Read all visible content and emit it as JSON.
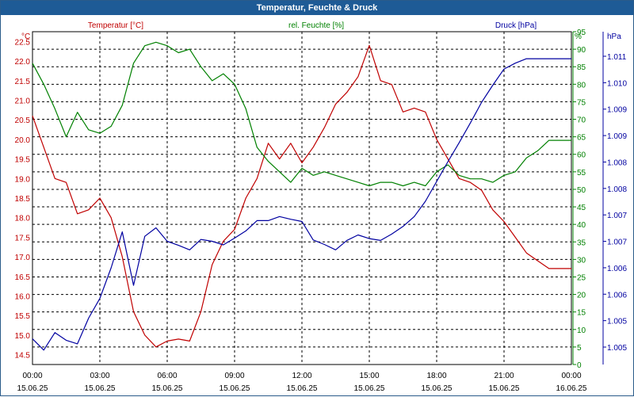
{
  "window": {
    "title": "Temperatur, Feuchte & Druck"
  },
  "colors": {
    "temperature": "#c00000",
    "humidity": "#008000",
    "pressure": "#0000a0",
    "grid": "#000000",
    "titlebar": "#1e5b96"
  },
  "chart_data": {
    "type": "line",
    "title": "Temperatur, Feuchte & Druck",
    "grid": true,
    "x_unit_labels": [
      "00:00",
      "03:00",
      "06:00",
      "09:00",
      "12:00",
      "15:00",
      "18:00",
      "21:00",
      "00:00"
    ],
    "x_date_labels": [
      "15.06.25",
      "15.06.25",
      "15.06.25",
      "15.06.25",
      "15.06.25",
      "15.06.25",
      "15.06.25",
      "15.06.25",
      "16.06.25"
    ],
    "x_hours": [
      0,
      0.5,
      1,
      1.5,
      2,
      2.5,
      3,
      3.5,
      4,
      4.5,
      5,
      5.5,
      6,
      6.5,
      7,
      7.5,
      8,
      8.5,
      9,
      9.5,
      10,
      10.5,
      11,
      11.5,
      12,
      12.5,
      13,
      13.5,
      14,
      14.5,
      15,
      15.5,
      16,
      16.5,
      17,
      17.5,
      18,
      18.5,
      19,
      19.5,
      20,
      20.5,
      21,
      21.5,
      22,
      22.5,
      23,
      23.5,
      24
    ],
    "axes": {
      "temperature": {
        "title": "Temperatur [°C]",
        "unit": "°C",
        "range": [
          14.25,
          22.75
        ],
        "ticks": [
          "14.5",
          "15.0",
          "15.5",
          "16.0",
          "16.5",
          "17.0",
          "17.5",
          "18.0",
          "18.5",
          "19.0",
          "19.5",
          "20.0",
          "20.5",
          "21.0",
          "21.5",
          "22.0",
          "22.5"
        ]
      },
      "humidity": {
        "title": "rel. Feuchte [%]",
        "unit": "%",
        "range": [
          0,
          95
        ],
        "ticks": [
          "0",
          "5",
          "10",
          "15",
          "20",
          "25",
          "30",
          "35",
          "40",
          "45",
          "50",
          "55",
          "60",
          "65",
          "70",
          "75",
          "80",
          "85",
          "90",
          "95"
        ]
      },
      "pressure": {
        "title": "Druck [hPa]",
        "unit": "hPa",
        "range": [
          1004.4,
          1011.8
        ],
        "ticks": [
          "1.005",
          "1.005",
          "1.006",
          "1.006",
          "1.007",
          "1.007",
          "1.008",
          "1.008",
          "1.009",
          "1.009",
          "1.010",
          "1.011"
        ]
      }
    },
    "series": [
      {
        "name": "Temperatur [°C]",
        "axis": "temperature",
        "color": "#c00000",
        "values": [
          20.6,
          19.8,
          19.0,
          18.9,
          18.1,
          18.2,
          18.5,
          18.0,
          17.0,
          15.6,
          15.0,
          14.7,
          14.85,
          14.9,
          14.85,
          15.6,
          16.8,
          17.4,
          17.7,
          18.5,
          19.0,
          19.9,
          19.5,
          19.9,
          19.4,
          19.8,
          20.3,
          20.9,
          21.2,
          21.6,
          22.4,
          21.5,
          21.4,
          20.7,
          20.8,
          20.7,
          20.0,
          19.5,
          19.0,
          18.9,
          18.7,
          18.2,
          17.9,
          17.5,
          17.1,
          16.9,
          16.7,
          16.7,
          16.7
        ]
      },
      {
        "name": "rel. Feuchte [%]",
        "axis": "humidity",
        "color": "#008000",
        "values": [
          86,
          80,
          73,
          65,
          72,
          67,
          66,
          68,
          74,
          86,
          91,
          92,
          91,
          89,
          90,
          85,
          81,
          83,
          80,
          73,
          62,
          58,
          55,
          52,
          56,
          54,
          55,
          54,
          53,
          52,
          51,
          52,
          52,
          51,
          52,
          51,
          55,
          57,
          54,
          53,
          53,
          52,
          54,
          55,
          59,
          61,
          64,
          64,
          64
        ]
      },
      {
        "name": "Druck [hPa]",
        "axis": "pressure",
        "color": "#0000a0",
        "values": [
          1004.97,
          1004.72,
          1005.11,
          1004.94,
          1004.86,
          1005.43,
          1005.87,
          1006.55,
          1007.35,
          1006.16,
          1007.25,
          1007.44,
          1007.14,
          1007.05,
          1006.95,
          1007.18,
          1007.14,
          1007.06,
          1007.21,
          1007.37,
          1007.6,
          1007.6,
          1007.69,
          1007.63,
          1007.58,
          1007.17,
          1007.07,
          1006.95,
          1007.16,
          1007.28,
          1007.2,
          1007.16,
          1007.3,
          1007.47,
          1007.69,
          1008.03,
          1008.47,
          1008.91,
          1009.33,
          1009.77,
          1010.23,
          1010.61,
          1010.97,
          1011.1,
          1011.2,
          1011.2,
          1011.2,
          1011.2,
          1011.2
        ]
      }
    ]
  }
}
